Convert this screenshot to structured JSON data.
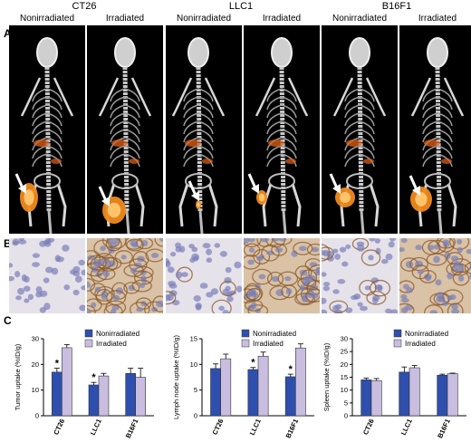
{
  "panel_labels": {
    "a": "A",
    "b": "B",
    "c": "C"
  },
  "groups": [
    {
      "name": "CT26",
      "cols": [
        "Nonirradiated",
        "Irradiated"
      ]
    },
    {
      "name": "LLC1",
      "cols": [
        "Nonirradiated",
        "Irradiated"
      ]
    },
    {
      "name": "B16F1",
      "cols": [
        "Nonirradiated",
        "Irradiated"
      ]
    }
  ],
  "colors": {
    "nonirradiated": "#2e4fae",
    "irradiated": "#c9bde0",
    "bar_edge": "#333333",
    "hotspot": "#e0631b"
  },
  "chart_data": [
    {
      "type": "bar",
      "ylabel": "Tumor uptake (%ID/g)",
      "ylim": [
        0,
        30
      ],
      "yticks": [
        "0",
        "10",
        "20",
        "30"
      ],
      "categories": [
        "CT26",
        "LLC1",
        "B16F1"
      ],
      "legend": "top-right",
      "series": [
        {
          "name": "Nonirradiated",
          "values": [
            17,
            12,
            16.5
          ],
          "errors": [
            1.5,
            1.0,
            2.0
          ]
        },
        {
          "name": "Irradiated",
          "values": [
            26.5,
            15.5,
            15
          ],
          "errors": [
            1.2,
            1.0,
            3.5
          ]
        }
      ],
      "significance": [
        "*",
        "*",
        ""
      ]
    },
    {
      "type": "bar",
      "ylabel": "Lymph node uptake (%ID/g)",
      "ylim": [
        0,
        15
      ],
      "yticks": [
        "0",
        "5",
        "10",
        "15"
      ],
      "categories": [
        "CT26",
        "LLC1",
        "B16F1"
      ],
      "legend": "top-right",
      "series": [
        {
          "name": "Nonirradiated",
          "values": [
            9.2,
            9.0,
            7.6
          ],
          "errors": [
            0.9,
            0.4,
            0.5
          ]
        },
        {
          "name": "Irradiated",
          "values": [
            11.1,
            11.6,
            13.2
          ],
          "errors": [
            0.9,
            0.8,
            0.8
          ]
        }
      ],
      "significance": [
        "",
        "*",
        "*"
      ]
    },
    {
      "type": "bar",
      "ylabel": "Spleen uptake (%ID/g)",
      "ylim": [
        0,
        30
      ],
      "yticks": [
        "0",
        "5",
        "10",
        "15",
        "20",
        "25",
        "30"
      ],
      "categories": [
        "CT26",
        "LLC1",
        "B16F1"
      ],
      "legend": "top-right",
      "series": [
        {
          "name": "Nonirradiated",
          "values": [
            14,
            17,
            15.8
          ],
          "errors": [
            0.7,
            2.0,
            0.4
          ]
        },
        {
          "name": "Irradiated",
          "values": [
            13.7,
            18.7,
            16.4
          ],
          "errors": [
            0.8,
            0.9,
            0.2
          ]
        }
      ],
      "significance": [
        "",
        "",
        ""
      ]
    }
  ]
}
